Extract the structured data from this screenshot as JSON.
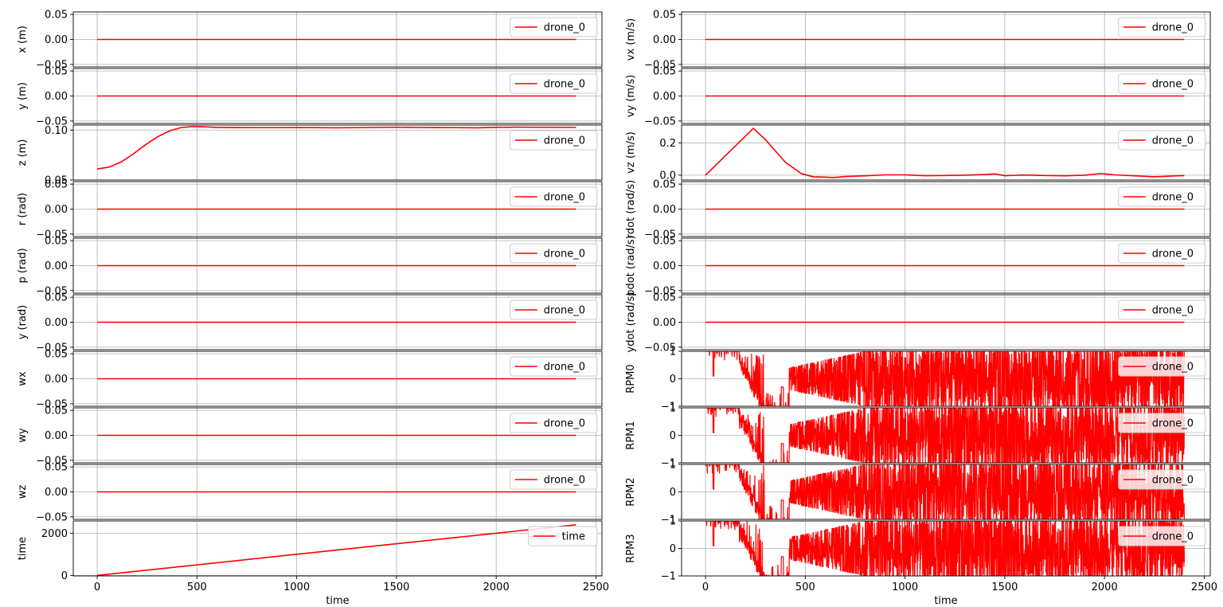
{
  "figure": {
    "background": "#ffffff",
    "line_color": "#ff0000",
    "grid_color": "#b0b0b0"
  },
  "chart_data": [
    {
      "type": "line",
      "column": "left",
      "row": 0,
      "ylabel": "x (m)",
      "xlabel": "",
      "ylim": [
        -0.055,
        0.055
      ],
      "yticks": [
        -0.05,
        0.0,
        0.05
      ],
      "ytick_labels": [
        "−0.05",
        "0.00",
        "0.05"
      ],
      "xlim": [
        -120,
        2530
      ],
      "xticks": [
        0,
        500,
        1000,
        1500,
        2000,
        2500
      ],
      "xtick_labels": [
        "0",
        "500",
        "1000",
        "1500",
        "2000",
        "2500"
      ],
      "show_xticks": false,
      "grid": true,
      "legend_position": "upper right",
      "series": [
        {
          "name": "drone_0",
          "shape": "flat",
          "value": 0.0,
          "x_start": 0,
          "x_end": 2400
        }
      ]
    },
    {
      "type": "line",
      "column": "left",
      "row": 1,
      "ylabel": "y (m)",
      "xlabel": "",
      "ylim": [
        -0.055,
        0.055
      ],
      "yticks": [
        -0.05,
        0.0,
        0.05
      ],
      "ytick_labels": [
        "−0.05",
        "0.00",
        "0.05"
      ],
      "xlim": [
        -120,
        2530
      ],
      "xticks": [
        0,
        500,
        1000,
        1500,
        2000,
        2500
      ],
      "xtick_labels": [
        "0",
        "500",
        "1000",
        "1500",
        "2000",
        "2500"
      ],
      "show_xticks": false,
      "grid": true,
      "legend_position": "upper right",
      "series": [
        {
          "name": "drone_0",
          "shape": "flat",
          "value": 0.0,
          "x_start": 0,
          "x_end": 2400
        }
      ]
    },
    {
      "type": "line",
      "column": "left",
      "row": 2,
      "ylabel": "z (m)",
      "xlabel": "",
      "ylim": [
        0.05,
        0.105
      ],
      "yticks": [
        0.05,
        0.1
      ],
      "ytick_labels": [
        "0.05",
        "0.10"
      ],
      "xlim": [
        -120,
        2530
      ],
      "xticks": [
        0,
        500,
        1000,
        1500,
        2000,
        2500
      ],
      "xtick_labels": [
        "0",
        "500",
        "1000",
        "1500",
        "2000",
        "2500"
      ],
      "show_xticks": false,
      "grid": true,
      "legend_position": "upper right",
      "series": [
        {
          "name": "drone_0",
          "shape": "points",
          "x": [
            0,
            60,
            120,
            180,
            240,
            300,
            360,
            420,
            480,
            540,
            600,
            700,
            800,
            900,
            1000,
            1100,
            1200,
            1300,
            1400,
            1500,
            1600,
            1700,
            1800,
            1900,
            2000,
            2100,
            2200,
            2400
          ],
          "y": [
            0.061,
            0.063,
            0.068,
            0.076,
            0.085,
            0.093,
            0.099,
            0.1025,
            0.1035,
            0.1032,
            0.1027,
            0.1025,
            0.1024,
            0.1024,
            0.1025,
            0.1024,
            0.1023,
            0.1024,
            0.1026,
            0.1028,
            0.1026,
            0.1025,
            0.1024,
            0.1023,
            0.1027,
            0.1029,
            0.1028,
            0.1026
          ]
        }
      ]
    },
    {
      "type": "line",
      "column": "left",
      "row": 3,
      "ylabel": "r (rad)",
      "xlabel": "",
      "ylim": [
        -0.055,
        0.055
      ],
      "yticks": [
        -0.05,
        0.0,
        0.05
      ],
      "ytick_labels": [
        "−0.05",
        "0.00",
        "0.05"
      ],
      "xlim": [
        -120,
        2530
      ],
      "xticks": [
        0,
        500,
        1000,
        1500,
        2000,
        2500
      ],
      "xtick_labels": [
        "0",
        "500",
        "1000",
        "1500",
        "2000",
        "2500"
      ],
      "show_xticks": false,
      "grid": true,
      "legend_position": "upper right",
      "series": [
        {
          "name": "drone_0",
          "shape": "flat",
          "value": 0.0,
          "x_start": 0,
          "x_end": 2400
        }
      ]
    },
    {
      "type": "line",
      "column": "left",
      "row": 4,
      "ylabel": "p (rad)",
      "xlabel": "",
      "ylim": [
        -0.055,
        0.055
      ],
      "yticks": [
        -0.05,
        0.0,
        0.05
      ],
      "ytick_labels": [
        "−0.05",
        "0.00",
        "0.05"
      ],
      "xlim": [
        -120,
        2530
      ],
      "xticks": [
        0,
        500,
        1000,
        1500,
        2000,
        2500
      ],
      "xtick_labels": [
        "0",
        "500",
        "1000",
        "1500",
        "2000",
        "2500"
      ],
      "show_xticks": false,
      "grid": true,
      "legend_position": "upper right",
      "series": [
        {
          "name": "drone_0",
          "shape": "flat",
          "value": 0.0,
          "x_start": 0,
          "x_end": 2400
        }
      ]
    },
    {
      "type": "line",
      "column": "left",
      "row": 5,
      "ylabel": "y (rad)",
      "xlabel": "",
      "ylim": [
        -0.055,
        0.055
      ],
      "yticks": [
        -0.05,
        0.0,
        0.05
      ],
      "ytick_labels": [
        "−0.05",
        "0.00",
        "0.05"
      ],
      "xlim": [
        -120,
        2530
      ],
      "xticks": [
        0,
        500,
        1000,
        1500,
        2000,
        2500
      ],
      "xtick_labels": [
        "0",
        "500",
        "1000",
        "1500",
        "2000",
        "2500"
      ],
      "show_xticks": false,
      "grid": true,
      "legend_position": "upper right",
      "series": [
        {
          "name": "drone_0",
          "shape": "flat",
          "value": 0.0,
          "x_start": 0,
          "x_end": 2400
        }
      ]
    },
    {
      "type": "line",
      "column": "left",
      "row": 6,
      "ylabel": "wx",
      "xlabel": "",
      "ylim": [
        -0.055,
        0.055
      ],
      "yticks": [
        -0.05,
        0.0,
        0.05
      ],
      "ytick_labels": [
        "−0.05",
        "0.00",
        "0.05"
      ],
      "xlim": [
        -120,
        2530
      ],
      "xticks": [
        0,
        500,
        1000,
        1500,
        2000,
        2500
      ],
      "xtick_labels": [
        "0",
        "500",
        "1000",
        "1500",
        "2000",
        "2500"
      ],
      "show_xticks": false,
      "grid": true,
      "legend_position": "upper right",
      "series": [
        {
          "name": "drone_0",
          "shape": "flat",
          "value": 0.0,
          "x_start": 0,
          "x_end": 2400
        }
      ]
    },
    {
      "type": "line",
      "column": "left",
      "row": 7,
      "ylabel": "wy",
      "xlabel": "",
      "ylim": [
        -0.055,
        0.055
      ],
      "yticks": [
        -0.05,
        0.0,
        0.05
      ],
      "ytick_labels": [
        "−0.05",
        "0.00",
        "0.05"
      ],
      "xlim": [
        -120,
        2530
      ],
      "xticks": [
        0,
        500,
        1000,
        1500,
        2000,
        2500
      ],
      "xtick_labels": [
        "0",
        "500",
        "1000",
        "1500",
        "2000",
        "2500"
      ],
      "show_xticks": false,
      "grid": true,
      "legend_position": "upper right",
      "series": [
        {
          "name": "drone_0",
          "shape": "flat",
          "value": 0.0,
          "x_start": 0,
          "x_end": 2400
        }
      ]
    },
    {
      "type": "line",
      "column": "left",
      "row": 8,
      "ylabel": "wz",
      "xlabel": "",
      "ylim": [
        -0.055,
        0.055
      ],
      "yticks": [
        -0.05,
        0.0,
        0.05
      ],
      "ytick_labels": [
        "−0.05",
        "0.00",
        "0.05"
      ],
      "xlim": [
        -120,
        2530
      ],
      "xticks": [
        0,
        500,
        1000,
        1500,
        2000,
        2500
      ],
      "xtick_labels": [
        "0",
        "500",
        "1000",
        "1500",
        "2000",
        "2500"
      ],
      "show_xticks": false,
      "grid": true,
      "legend_position": "upper right",
      "series": [
        {
          "name": "drone_0",
          "shape": "flat",
          "value": 0.0,
          "x_start": 0,
          "x_end": 2400
        }
      ]
    },
    {
      "type": "line",
      "column": "left",
      "row": 9,
      "ylabel": "time",
      "xlabel": "time",
      "ylim": [
        -25,
        2580
      ],
      "yticks": [
        0,
        2000
      ],
      "ytick_labels": [
        "0",
        "2000"
      ],
      "xlim": [
        -120,
        2530
      ],
      "xticks": [
        0,
        500,
        1000,
        1500,
        2000,
        2500
      ],
      "xtick_labels": [
        "0",
        "500",
        "1000",
        "1500",
        "2000",
        "2500"
      ],
      "show_xticks": true,
      "grid": true,
      "legend_position": "upper right",
      "series": [
        {
          "name": "time",
          "shape": "points",
          "x": [
            0,
            2400
          ],
          "y": [
            0,
            2400
          ]
        }
      ]
    },
    {
      "type": "line",
      "column": "right",
      "row": 0,
      "ylabel": "vx (m/s)",
      "xlabel": "",
      "ylim": [
        -0.055,
        0.055
      ],
      "yticks": [
        -0.05,
        0.0,
        0.05
      ],
      "ytick_labels": [
        "−0.05",
        "0.00",
        "0.05"
      ],
      "xlim": [
        -120,
        2530
      ],
      "xticks": [
        0,
        500,
        1000,
        1500,
        2000,
        2500
      ],
      "xtick_labels": [
        "0",
        "500",
        "1000",
        "1500",
        "2000",
        "2500"
      ],
      "show_xticks": false,
      "grid": true,
      "legend_position": "upper right",
      "series": [
        {
          "name": "drone_0",
          "shape": "flat",
          "value": 0.0,
          "x_start": 0,
          "x_end": 2400
        }
      ]
    },
    {
      "type": "line",
      "column": "right",
      "row": 1,
      "ylabel": "vy (m/s)",
      "xlabel": "",
      "ylim": [
        -0.055,
        0.055
      ],
      "yticks": [
        -0.05,
        0.0,
        0.05
      ],
      "ytick_labels": [
        "−0.05",
        "0.00",
        "0.05"
      ],
      "xlim": [
        -120,
        2530
      ],
      "xticks": [
        0,
        500,
        1000,
        1500,
        2000,
        2500
      ],
      "xtick_labels": [
        "0",
        "500",
        "1000",
        "1500",
        "2000",
        "2500"
      ],
      "show_xticks": false,
      "grid": true,
      "legend_position": "upper right",
      "series": [
        {
          "name": "drone_0",
          "shape": "flat",
          "value": 0.0,
          "x_start": 0,
          "x_end": 2400
        }
      ]
    },
    {
      "type": "line",
      "column": "right",
      "row": 2,
      "ylabel": "vz (m/s)",
      "xlabel": "",
      "ylim": [
        -0.03,
        0.31
      ],
      "yticks": [
        0.0,
        0.2
      ],
      "ytick_labels": [
        "0.0",
        "0.2"
      ],
      "xlim": [
        -120,
        2530
      ],
      "xticks": [
        0,
        500,
        1000,
        1500,
        2000,
        2500
      ],
      "xtick_labels": [
        "0",
        "500",
        "1000",
        "1500",
        "2000",
        "2500"
      ],
      "show_xticks": false,
      "grid": true,
      "legend_position": "upper right",
      "series": [
        {
          "name": "drone_0",
          "shape": "points",
          "x": [
            0,
            240,
            300,
            400,
            480,
            540,
            600,
            640,
            700,
            800,
            900,
            1000,
            1100,
            1200,
            1300,
            1400,
            1450,
            1500,
            1600,
            1700,
            1800,
            1900,
            1980,
            2050,
            2150,
            2250,
            2400
          ],
          "y": [
            0.0,
            0.29,
            0.22,
            0.08,
            0.01,
            -0.01,
            -0.012,
            -0.015,
            -0.008,
            -0.004,
            0.002,
            0.002,
            -0.003,
            -0.002,
            0.0,
            0.004,
            0.008,
            -0.003,
            0.001,
            -0.002,
            -0.004,
            0.0,
            0.01,
            0.002,
            -0.004,
            -0.01,
            -0.002
          ]
        }
      ]
    },
    {
      "type": "line",
      "column": "right",
      "row": 3,
      "ylabel": "rdot (rad/s)",
      "xlabel": "",
      "ylim": [
        -0.055,
        0.055
      ],
      "yticks": [
        -0.05,
        0.0,
        0.05
      ],
      "ytick_labels": [
        "−0.05",
        "0.00",
        "0.05"
      ],
      "xlim": [
        -120,
        2530
      ],
      "xticks": [
        0,
        500,
        1000,
        1500,
        2000,
        2500
      ],
      "xtick_labels": [
        "0",
        "500",
        "1000",
        "1500",
        "2000",
        "2500"
      ],
      "show_xticks": false,
      "grid": true,
      "legend_position": "upper right",
      "series": [
        {
          "name": "drone_0",
          "shape": "flat",
          "value": 0.0,
          "x_start": 0,
          "x_end": 2400
        }
      ]
    },
    {
      "type": "line",
      "column": "right",
      "row": 4,
      "ylabel": "pdot (rad/s)",
      "xlabel": "",
      "ylim": [
        -0.055,
        0.055
      ],
      "yticks": [
        -0.05,
        0.0,
        0.05
      ],
      "ytick_labels": [
        "−0.05",
        "0.00",
        "0.05"
      ],
      "xlim": [
        -120,
        2530
      ],
      "xticks": [
        0,
        500,
        1000,
        1500,
        2000,
        2500
      ],
      "xtick_labels": [
        "0",
        "500",
        "1000",
        "1500",
        "2000",
        "2500"
      ],
      "show_xticks": false,
      "grid": true,
      "legend_position": "upper right",
      "series": [
        {
          "name": "drone_0",
          "shape": "flat",
          "value": 0.0,
          "x_start": 0,
          "x_end": 2400
        }
      ]
    },
    {
      "type": "line",
      "column": "right",
      "row": 5,
      "ylabel": "ydot (rad/s)",
      "xlabel": "",
      "ylim": [
        -0.055,
        0.055
      ],
      "yticks": [
        -0.05,
        0.0,
        0.05
      ],
      "ytick_labels": [
        "−0.05",
        "0.00",
        "0.05"
      ],
      "xlim": [
        -120,
        2530
      ],
      "xticks": [
        0,
        500,
        1000,
        1500,
        2000,
        2500
      ],
      "xtick_labels": [
        "0",
        "500",
        "1000",
        "1500",
        "2000",
        "2500"
      ],
      "show_xticks": false,
      "grid": true,
      "legend_position": "upper right",
      "series": [
        {
          "name": "drone_0",
          "shape": "flat",
          "value": 0.0,
          "x_start": 0,
          "x_end": 2400
        }
      ]
    },
    {
      "type": "line",
      "column": "right",
      "row": 6,
      "ylabel": "RPM0",
      "xlabel": "",
      "ylim": [
        -1.0,
        1.0
      ],
      "yticks": [
        -1,
        0,
        1
      ],
      "ytick_labels": [
        "−1",
        "0",
        "1"
      ],
      "xlim": [
        -120,
        2530
      ],
      "xticks": [
        0,
        500,
        1000,
        1500,
        2000,
        2500
      ],
      "xtick_labels": [
        "0",
        "500",
        "1000",
        "1500",
        "2000",
        "2500"
      ],
      "show_xticks": false,
      "grid": true,
      "legend_position": "upper right",
      "series": [
        {
          "name": "drone_0",
          "shape": "rpm",
          "x_start": 0,
          "x_end": 2400
        }
      ]
    },
    {
      "type": "line",
      "column": "right",
      "row": 7,
      "ylabel": "RPM1",
      "xlabel": "",
      "ylim": [
        -1.0,
        1.0
      ],
      "yticks": [
        -1,
        0,
        1
      ],
      "ytick_labels": [
        "−1",
        "0",
        "1"
      ],
      "xlim": [
        -120,
        2530
      ],
      "xticks": [
        0,
        500,
        1000,
        1500,
        2000,
        2500
      ],
      "xtick_labels": [
        "0",
        "500",
        "1000",
        "1500",
        "2000",
        "2500"
      ],
      "show_xticks": false,
      "grid": true,
      "legend_position": "upper right",
      "series": [
        {
          "name": "drone_0",
          "shape": "rpm",
          "x_start": 0,
          "x_end": 2400
        }
      ]
    },
    {
      "type": "line",
      "column": "right",
      "row": 8,
      "ylabel": "RPM2",
      "xlabel": "",
      "ylim": [
        -1.0,
        1.0
      ],
      "yticks": [
        -1,
        0,
        1
      ],
      "ytick_labels": [
        "−1",
        "0",
        "1"
      ],
      "xlim": [
        -120,
        2530
      ],
      "xticks": [
        0,
        500,
        1000,
        1500,
        2000,
        2500
      ],
      "xtick_labels": [
        "0",
        "500",
        "1000",
        "1500",
        "2000",
        "2500"
      ],
      "show_xticks": false,
      "grid": true,
      "legend_position": "upper right",
      "series": [
        {
          "name": "drone_0",
          "shape": "rpm",
          "x_start": 0,
          "x_end": 2400
        }
      ]
    },
    {
      "type": "line",
      "column": "right",
      "row": 9,
      "ylabel": "RPM3",
      "xlabel": "time",
      "ylim": [
        -1.0,
        1.0
      ],
      "yticks": [
        -1,
        0,
        1
      ],
      "ytick_labels": [
        "−1",
        "0",
        "1"
      ],
      "xlim": [
        -120,
        2530
      ],
      "xticks": [
        0,
        500,
        1000,
        1500,
        2000,
        2500
      ],
      "xtick_labels": [
        "0",
        "500",
        "1000",
        "1500",
        "2000",
        "2500"
      ],
      "show_xticks": true,
      "grid": true,
      "legend_position": "upper right",
      "series": [
        {
          "name": "drone_0",
          "shape": "rpm",
          "x_start": 0,
          "x_end": 2400
        }
      ]
    }
  ]
}
